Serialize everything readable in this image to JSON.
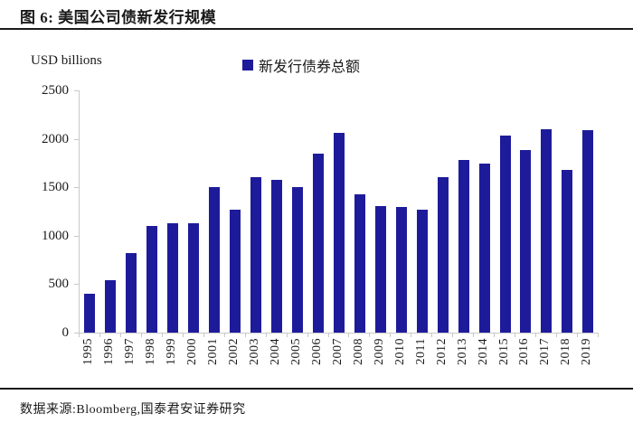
{
  "header": {
    "title": "图 6:  美国公司债新发行规模"
  },
  "footer": {
    "text": "数据来源:Bloomberg,国泰君安证券研究"
  },
  "chart_data": {
    "type": "bar",
    "title": "图 6: 美国公司债新发行规模",
    "units_label": "USD billions",
    "legend": [
      {
        "label": "新发行债券总额",
        "color": "#1e1b9b"
      }
    ],
    "legend_position": "top-center",
    "categories": [
      "1995",
      "1996",
      "1997",
      "1998",
      "1999",
      "2000",
      "2001",
      "2002",
      "2003",
      "2004",
      "2005",
      "2006",
      "2007",
      "2008",
      "2009",
      "2010",
      "2011",
      "2012",
      "2013",
      "2014",
      "2015",
      "2016",
      "2017",
      "2018",
      "2019"
    ],
    "series": [
      {
        "name": "新发行债券总额",
        "values": [
          400,
          540,
          820,
          1100,
          1130,
          1130,
          1500,
          1270,
          1600,
          1580,
          1500,
          1850,
          2060,
          1430,
          1310,
          1300,
          1270,
          1600,
          1780,
          1740,
          2030,
          1880,
          2100,
          1680,
          2090
        ]
      }
    ],
    "xlabel": "",
    "ylabel": "USD billions",
    "ylim": [
      0,
      2500
    ],
    "yticks": [
      0,
      500,
      1000,
      1500,
      2000,
      2500
    ],
    "grid": false,
    "bar_color": "#1e1b9b",
    "axis_color": "#c8c8c8",
    "text_color": "#1a1a1a"
  }
}
